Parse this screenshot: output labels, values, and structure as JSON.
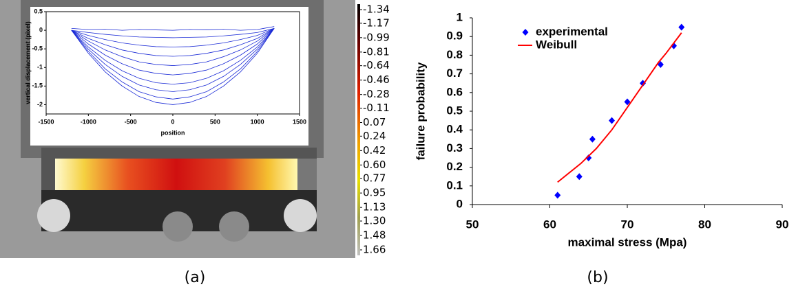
{
  "chart_data": [
    {
      "type": "line",
      "caption": "(a)",
      "xlabel": "position",
      "ylabel": "vertical displacement (pixel)",
      "xlim": [
        -1500,
        1500
      ],
      "xticks": [
        -1500,
        -1000,
        -500,
        0,
        500,
        1000,
        1500
      ],
      "ylim": [
        -2.25,
        0.5
      ],
      "yticks": [
        0.5,
        0,
        -0.5,
        -1,
        -1.5,
        -2
      ],
      "x": [
        -1200,
        -1000,
        -800,
        -600,
        -400,
        -200,
        0,
        200,
        400,
        600,
        800,
        1000,
        1200
      ],
      "series": [
        {
          "color": "#1a2ad6",
          "values": [
            0.05,
            0.02,
            0.03,
            0,
            0.02,
            0.01,
            0,
            0.02,
            0.01,
            0.03,
            0,
            0.02,
            0.1
          ]
        },
        {
          "color": "#1a2ad6",
          "values": [
            0,
            -0.06,
            -0.11,
            -0.15,
            -0.18,
            -0.19,
            -0.2,
            -0.19,
            -0.18,
            -0.15,
            -0.11,
            -0.06,
            0.05
          ]
        },
        {
          "color": "#1a2ad6",
          "values": [
            0,
            -0.14,
            -0.25,
            -0.34,
            -0.4,
            -0.44,
            -0.45,
            -0.44,
            -0.4,
            -0.34,
            -0.25,
            -0.14,
            0.05
          ]
        },
        {
          "color": "#1a2ad6",
          "values": [
            0,
            -0.22,
            -0.39,
            -0.53,
            -0.62,
            -0.68,
            -0.7,
            -0.68,
            -0.62,
            -0.53,
            -0.39,
            -0.22,
            0.05
          ]
        },
        {
          "color": "#1a2ad6",
          "values": [
            0,
            -0.29,
            -0.53,
            -0.71,
            -0.85,
            -0.92,
            -0.95,
            -0.92,
            -0.85,
            -0.71,
            -0.53,
            -0.29,
            0.05
          ]
        },
        {
          "color": "#1a2ad6",
          "values": [
            0,
            -0.37,
            -0.67,
            -0.9,
            -1.07,
            -1.16,
            -1.2,
            -1.16,
            -1.07,
            -0.9,
            -0.67,
            -0.37,
            0.05
          ]
        },
        {
          "color": "#1a2ad6",
          "values": [
            0,
            -0.45,
            -0.81,
            -1.09,
            -1.29,
            -1.41,
            -1.45,
            -1.41,
            -1.29,
            -1.09,
            -0.81,
            -0.45,
            0.05
          ]
        },
        {
          "color": "#1a2ad6",
          "values": [
            0,
            -0.51,
            -0.92,
            -1.24,
            -1.47,
            -1.6,
            -1.65,
            -1.6,
            -1.47,
            -1.24,
            -0.92,
            -0.51,
            0.05
          ]
        },
        {
          "color": "#1a2ad6",
          "values": [
            0,
            -0.57,
            -1.04,
            -1.39,
            -1.65,
            -1.79,
            -1.85,
            -1.79,
            -1.65,
            -1.39,
            -1.04,
            -0.57,
            0.05
          ]
        },
        {
          "color": "#1a2ad6",
          "values": [
            0,
            -0.62,
            -1.12,
            -1.5,
            -1.78,
            -1.94,
            -2,
            -1.94,
            -1.78,
            -1.5,
            -1.12,
            -0.62,
            0.05
          ]
        }
      ]
    },
    {
      "type": "colorbar",
      "ylim": [
        -1.34,
        1.66
      ],
      "yticks": [
        -1.34,
        -1.17,
        -0.99,
        -0.81,
        -0.64,
        -0.46,
        -0.28,
        -0.11,
        0.07,
        0.24,
        0.42,
        {
          "value": 0.6,
          "label": "0.60"
        },
        0.77,
        0.95,
        1.13,
        {
          "value": 1.3,
          "label": "1.30"
        },
        1.48,
        1.66
      ]
    },
    {
      "type": "scatter",
      "caption": "(b)",
      "xlabel": "maximal stress (Mpa)",
      "ylabel": "failure probability",
      "xlim": [
        50,
        90
      ],
      "xticks": [
        50,
        60,
        70,
        80,
        90
      ],
      "ylim": [
        0,
        1
      ],
      "yticks": [
        0,
        0.1,
        0.2,
        0.3,
        0.4,
        0.5,
        0.6,
        0.7,
        0.8,
        0.9,
        1
      ],
      "series": [
        {
          "name": "experimental",
          "color": "#0000ff",
          "marker": "diamond",
          "x": [
            61,
            63.8,
            65,
            65.5,
            68,
            70,
            72,
            74.3,
            76,
            77
          ],
          "values": [
            0.05,
            0.15,
            0.25,
            0.35,
            0.45,
            0.55,
            0.65,
            0.75,
            0.85,
            0.95
          ]
        },
        {
          "name": "Weibull",
          "color": "#ff0000",
          "marker": "line",
          "x": [
            61,
            64,
            66,
            68,
            70,
            72,
            74,
            75,
            77
          ],
          "values": [
            0.12,
            0.22,
            0.3,
            0.4,
            0.52,
            0.64,
            0.76,
            0.81,
            0.92
          ]
        }
      ]
    }
  ]
}
